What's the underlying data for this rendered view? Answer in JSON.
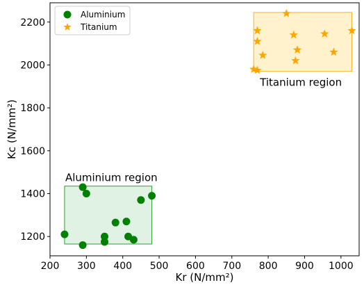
{
  "chart_data": {
    "type": "scatter",
    "xlabel": "Kr (N/mm²)",
    "ylabel": "Kc (N/mm²)",
    "xlim": [
      200,
      1050
    ],
    "ylim": [
      1110,
      2290
    ],
    "xticks": [
      200,
      300,
      400,
      500,
      600,
      700,
      800,
      900,
      1000
    ],
    "yticks": [
      1200,
      1400,
      1600,
      1800,
      2000,
      2200
    ],
    "grid": false,
    "legend_position": "top-left",
    "series": [
      {
        "name": "Aluminium",
        "marker": "circle",
        "color": "#008000",
        "points": [
          {
            "x": 240,
            "y": 1210
          },
          {
            "x": 290,
            "y": 1160
          },
          {
            "x": 290,
            "y": 1430
          },
          {
            "x": 300,
            "y": 1400
          },
          {
            "x": 350,
            "y": 1200
          },
          {
            "x": 350,
            "y": 1175
          },
          {
            "x": 380,
            "y": 1265
          },
          {
            "x": 410,
            "y": 1270
          },
          {
            "x": 415,
            "y": 1200
          },
          {
            "x": 430,
            "y": 1185
          },
          {
            "x": 450,
            "y": 1370
          },
          {
            "x": 480,
            "y": 1390
          }
        ]
      },
      {
        "name": "Titanium",
        "marker": "star",
        "color": "#FFA500",
        "points": [
          {
            "x": 760,
            "y": 1980
          },
          {
            "x": 770,
            "y": 1975
          },
          {
            "x": 770,
            "y": 2160
          },
          {
            "x": 770,
            "y": 2110
          },
          {
            "x": 785,
            "y": 2045
          },
          {
            "x": 850,
            "y": 2240
          },
          {
            "x": 870,
            "y": 2140
          },
          {
            "x": 875,
            "y": 2020
          },
          {
            "x": 880,
            "y": 2070
          },
          {
            "x": 955,
            "y": 2145
          },
          {
            "x": 980,
            "y": 2060
          },
          {
            "x": 1030,
            "y": 2160
          }
        ]
      }
    ],
    "regions": [
      {
        "label": "Aluminium region",
        "x_range": [
          240,
          480
        ],
        "y_range": [
          1165,
          1435
        ],
        "fill": "#dff2e3",
        "stroke": "#2ca02c"
      },
      {
        "label": "Titanium region",
        "x_range": [
          760,
          1030
        ],
        "y_range": [
          1970,
          2245
        ],
        "fill": "#fff2cc",
        "stroke": "#f0b429"
      }
    ]
  }
}
